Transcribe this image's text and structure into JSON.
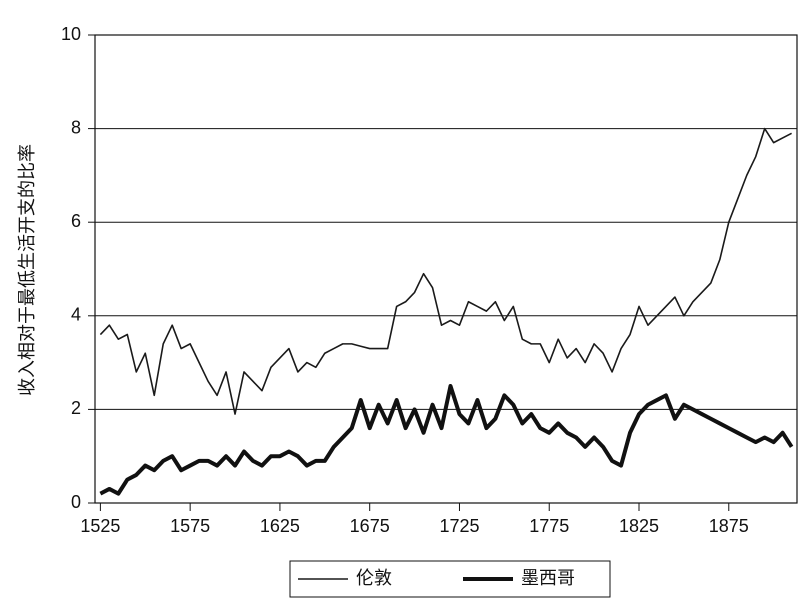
{
  "chart_data": {
    "type": "line",
    "y_label": "收入相对于最低生活开支的比率",
    "x": [
      1525,
      1530,
      1535,
      1540,
      1545,
      1550,
      1555,
      1560,
      1565,
      1570,
      1575,
      1580,
      1585,
      1590,
      1595,
      1600,
      1605,
      1610,
      1615,
      1620,
      1625,
      1630,
      1635,
      1640,
      1645,
      1650,
      1655,
      1660,
      1665,
      1670,
      1675,
      1680,
      1685,
      1690,
      1695,
      1700,
      1705,
      1710,
      1715,
      1720,
      1725,
      1730,
      1735,
      1740,
      1745,
      1750,
      1755,
      1760,
      1765,
      1770,
      1775,
      1780,
      1785,
      1790,
      1795,
      1800,
      1805,
      1810,
      1815,
      1820,
      1825,
      1830,
      1835,
      1840,
      1845,
      1850,
      1855,
      1860,
      1865,
      1870,
      1875,
      1880,
      1885,
      1890,
      1895,
      1900,
      1905,
      1910
    ],
    "series": [
      {
        "name": "伦敦",
        "color": "#1a1a1a",
        "values": [
          3.6,
          3.8,
          3.5,
          3.6,
          2.8,
          3.2,
          2.3,
          3.4,
          3.8,
          3.3,
          3.4,
          3.0,
          2.6,
          2.3,
          2.8,
          1.9,
          2.8,
          2.6,
          2.4,
          2.9,
          3.1,
          3.3,
          2.8,
          3.0,
          2.9,
          3.2,
          3.3,
          3.4,
          3.4,
          3.35,
          3.3,
          3.3,
          3.3,
          4.2,
          4.3,
          4.5,
          4.9,
          4.6,
          3.8,
          3.9,
          3.8,
          4.3,
          4.2,
          4.1,
          4.3,
          3.9,
          4.2,
          3.5,
          3.4,
          3.4,
          3.0,
          3.5,
          3.1,
          3.3,
          3.0,
          3.4,
          3.2,
          2.8,
          3.3,
          3.6,
          4.2,
          3.8,
          4.0,
          4.2,
          4.4,
          4.0,
          4.3,
          4.5,
          4.7,
          5.2,
          6.0,
          6.5,
          7.0,
          7.4,
          8.0,
          7.7,
          7.8,
          7.9
        ]
      },
      {
        "name": "墨西哥",
        "color": "#111111",
        "values": [
          0.2,
          0.3,
          0.2,
          0.5,
          0.6,
          0.8,
          0.7,
          0.9,
          1.0,
          0.7,
          0.8,
          0.9,
          0.9,
          0.8,
          1.0,
          0.8,
          1.1,
          0.9,
          0.8,
          1.0,
          1.0,
          1.1,
          1.0,
          0.8,
          0.9,
          0.9,
          1.2,
          1.4,
          1.6,
          2.2,
          1.6,
          2.1,
          1.7,
          2.2,
          1.6,
          2.0,
          1.5,
          2.1,
          1.6,
          2.5,
          1.9,
          1.7,
          2.2,
          1.6,
          1.8,
          2.3,
          2.1,
          1.7,
          1.9,
          1.6,
          1.5,
          1.7,
          1.5,
          1.4,
          1.2,
          1.4,
          1.2,
          0.9,
          0.8,
          1.5,
          1.9,
          2.1,
          2.2,
          2.3,
          1.8,
          2.1,
          2.0,
          1.9,
          1.8,
          1.7,
          1.6,
          1.5,
          1.4,
          1.3,
          1.4,
          1.3,
          1.5,
          1.2
        ]
      }
    ],
    "xlim": [
      1522,
      1913
    ],
    "xticks": [
      1525,
      1575,
      1625,
      1675,
      1725,
      1775,
      1825,
      1875
    ],
    "ylim": [
      0,
      10
    ],
    "yticks": [
      0,
      2,
      4,
      6,
      8,
      10
    ],
    "grid": true,
    "legend": "bottom"
  }
}
